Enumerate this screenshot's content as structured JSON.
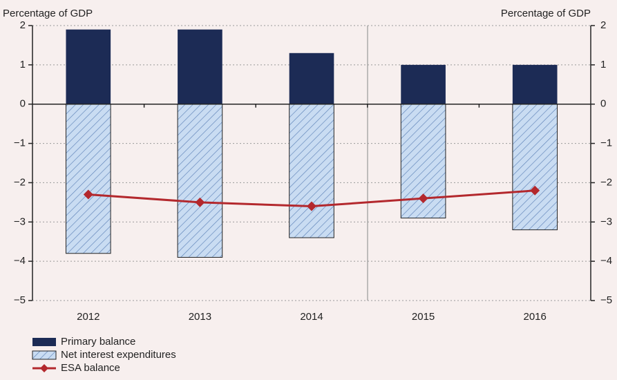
{
  "chart_data": {
    "type": "bar",
    "y_label": "Percentage of GDP",
    "y2_label": "Percentage of GDP",
    "categories": [
      "2012",
      "2013",
      "2014",
      "2015",
      "2016"
    ],
    "series": [
      {
        "name": "Primary balance",
        "type": "bar",
        "color": "#1c2b55",
        "values": [
          1.9,
          1.9,
          1.3,
          1.0,
          1.0
        ]
      },
      {
        "name": "Net interest expenditures",
        "type": "bar",
        "color": "#c9dcf2",
        "hatch": "#5d82b8",
        "values": [
          -3.8,
          -3.9,
          -3.4,
          -2.9,
          -3.2
        ]
      },
      {
        "name": "ESA balance",
        "type": "line",
        "color": "#b3282d",
        "values": [
          -2.3,
          -2.5,
          -2.6,
          -2.4,
          -2.2
        ]
      }
    ],
    "ylim": [
      -5,
      2
    ],
    "yticks": [
      2,
      1,
      0,
      {
        "value": -1,
        "label": "−1"
      },
      {
        "value": -2,
        "label": "−2"
      },
      {
        "value": -3,
        "label": "−3"
      },
      {
        "value": -4,
        "label": "−4"
      },
      {
        "value": -5,
        "label": "−5"
      }
    ],
    "y2lim": [
      -5,
      2
    ],
    "y2ticks": [
      2,
      1,
      0,
      {
        "value": -1,
        "label": "−1"
      },
      {
        "value": -2,
        "label": "−2"
      },
      {
        "value": -3,
        "label": "−3"
      },
      {
        "value": -4,
        "label": "−4"
      },
      {
        "value": -5,
        "label": "−5"
      }
    ],
    "grid": true
  }
}
